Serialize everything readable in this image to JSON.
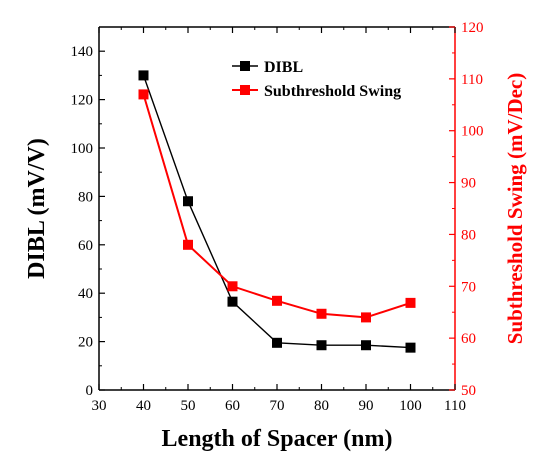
{
  "chart_data": {
    "type": "line",
    "x": [
      40,
      50,
      60,
      70,
      80,
      90,
      100
    ],
    "xlabel": "Length of Spacer (nm)",
    "xlim": [
      30,
      110
    ],
    "xticks": [
      30,
      40,
      50,
      60,
      70,
      80,
      90,
      100,
      110
    ],
    "y_left": {
      "label": "DIBL (mV/V)",
      "lim": [
        0,
        150
      ],
      "ticks": [
        0,
        20,
        40,
        60,
        80,
        100,
        120,
        140
      ],
      "color": "#000000"
    },
    "y_right": {
      "label": "Subthreshold Swing (mV/Dec)",
      "lim": [
        50,
        120
      ],
      "ticks": [
        50,
        60,
        70,
        80,
        90,
        100,
        110,
        120
      ],
      "color": "#ff0000"
    },
    "series": [
      {
        "name": "DIBL",
        "axis": "left",
        "color": "#000000",
        "marker": "square",
        "values": [
          130,
          78,
          36.5,
          19.5,
          18.5,
          18.5,
          17.5
        ]
      },
      {
        "name": "Subthreshold Swing",
        "axis": "right",
        "color": "#ff0000",
        "marker": "square",
        "values": [
          107,
          78,
          70,
          67.2,
          64.7,
          64,
          66.8
        ]
      }
    ],
    "legend_position": "top-right",
    "grid": false
  }
}
